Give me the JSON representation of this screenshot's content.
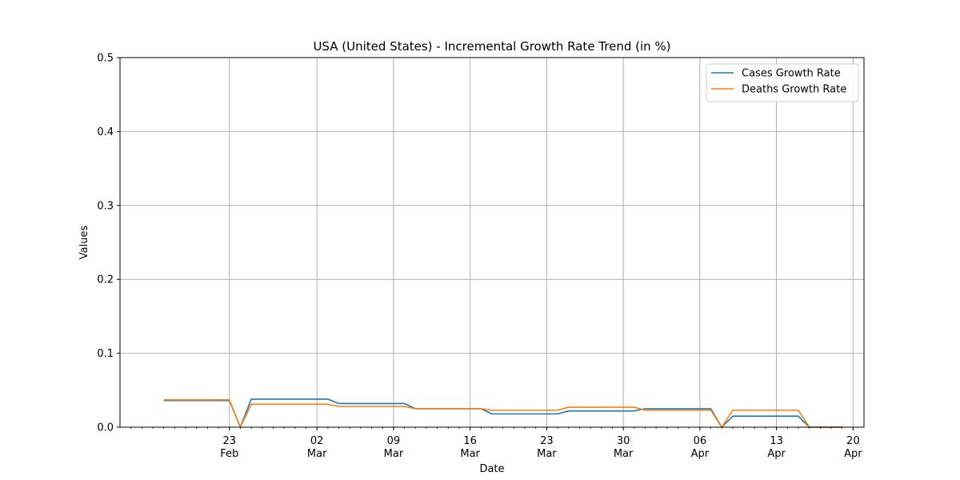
{
  "chart_data": {
    "type": "line",
    "title": "USA (United States) - Incremental Growth Rate Trend (in %)",
    "xlabel": "Date",
    "ylabel": "Values",
    "ylim": [
      0,
      0.5
    ],
    "yticks": [
      "0.0",
      "0.1",
      "0.2",
      "0.3",
      "0.4",
      "0.5"
    ],
    "xlim": [
      "2020-02-13",
      "2020-04-21"
    ],
    "xticks": [
      {
        "date": "2020-02-23",
        "day": "23",
        "month": "Feb"
      },
      {
        "date": "2020-03-02",
        "day": "02",
        "month": "Mar"
      },
      {
        "date": "2020-03-09",
        "day": "09",
        "month": "Mar"
      },
      {
        "date": "2020-03-16",
        "day": "16",
        "month": "Mar"
      },
      {
        "date": "2020-03-23",
        "day": "23",
        "month": "Mar"
      },
      {
        "date": "2020-03-30",
        "day": "30",
        "month": "Mar"
      },
      {
        "date": "2020-04-06",
        "day": "06",
        "month": "Apr"
      },
      {
        "date": "2020-04-13",
        "day": "13",
        "month": "Apr"
      },
      {
        "date": "2020-04-20",
        "day": "20",
        "month": "Apr"
      }
    ],
    "grid": true,
    "legend_position": "top-right",
    "series": [
      {
        "name": "Cases Growth Rate",
        "color": "#1f77b4",
        "points": [
          [
            "2020-02-17",
            0.036
          ],
          [
            "2020-02-23",
            0.036
          ],
          [
            "2020-02-24",
            0.0
          ],
          [
            "2020-02-25",
            0.038
          ],
          [
            "2020-03-03",
            0.038
          ],
          [
            "2020-03-04",
            0.032
          ],
          [
            "2020-03-10",
            0.032
          ],
          [
            "2020-03-11",
            0.025
          ],
          [
            "2020-03-17",
            0.025
          ],
          [
            "2020-03-18",
            0.018
          ],
          [
            "2020-03-24",
            0.018
          ],
          [
            "2020-03-25",
            0.022
          ],
          [
            "2020-03-31",
            0.022
          ],
          [
            "2020-04-01",
            0.025
          ],
          [
            "2020-04-07",
            0.025
          ],
          [
            "2020-04-08",
            0.0
          ],
          [
            "2020-04-09",
            0.015
          ],
          [
            "2020-04-15",
            0.015
          ],
          [
            "2020-04-16",
            0.0
          ],
          [
            "2020-04-19",
            0.0
          ]
        ]
      },
      {
        "name": "Deaths Growth Rate",
        "color": "#ff7f0e",
        "points": [
          [
            "2020-02-17",
            0.037
          ],
          [
            "2020-02-23",
            0.037
          ],
          [
            "2020-02-24",
            0.0
          ],
          [
            "2020-02-25",
            0.031
          ],
          [
            "2020-03-03",
            0.031
          ],
          [
            "2020-03-04",
            0.028
          ],
          [
            "2020-03-10",
            0.028
          ],
          [
            "2020-03-11",
            0.025
          ],
          [
            "2020-03-17",
            0.025
          ],
          [
            "2020-03-18",
            0.023
          ],
          [
            "2020-03-24",
            0.023
          ],
          [
            "2020-03-25",
            0.027
          ],
          [
            "2020-03-31",
            0.027
          ],
          [
            "2020-04-01",
            0.023
          ],
          [
            "2020-04-07",
            0.023
          ],
          [
            "2020-04-08",
            0.0
          ],
          [
            "2020-04-09",
            0.023
          ],
          [
            "2020-04-15",
            0.023
          ],
          [
            "2020-04-16",
            0.0
          ],
          [
            "2020-04-19",
            0.0
          ]
        ]
      }
    ]
  }
}
